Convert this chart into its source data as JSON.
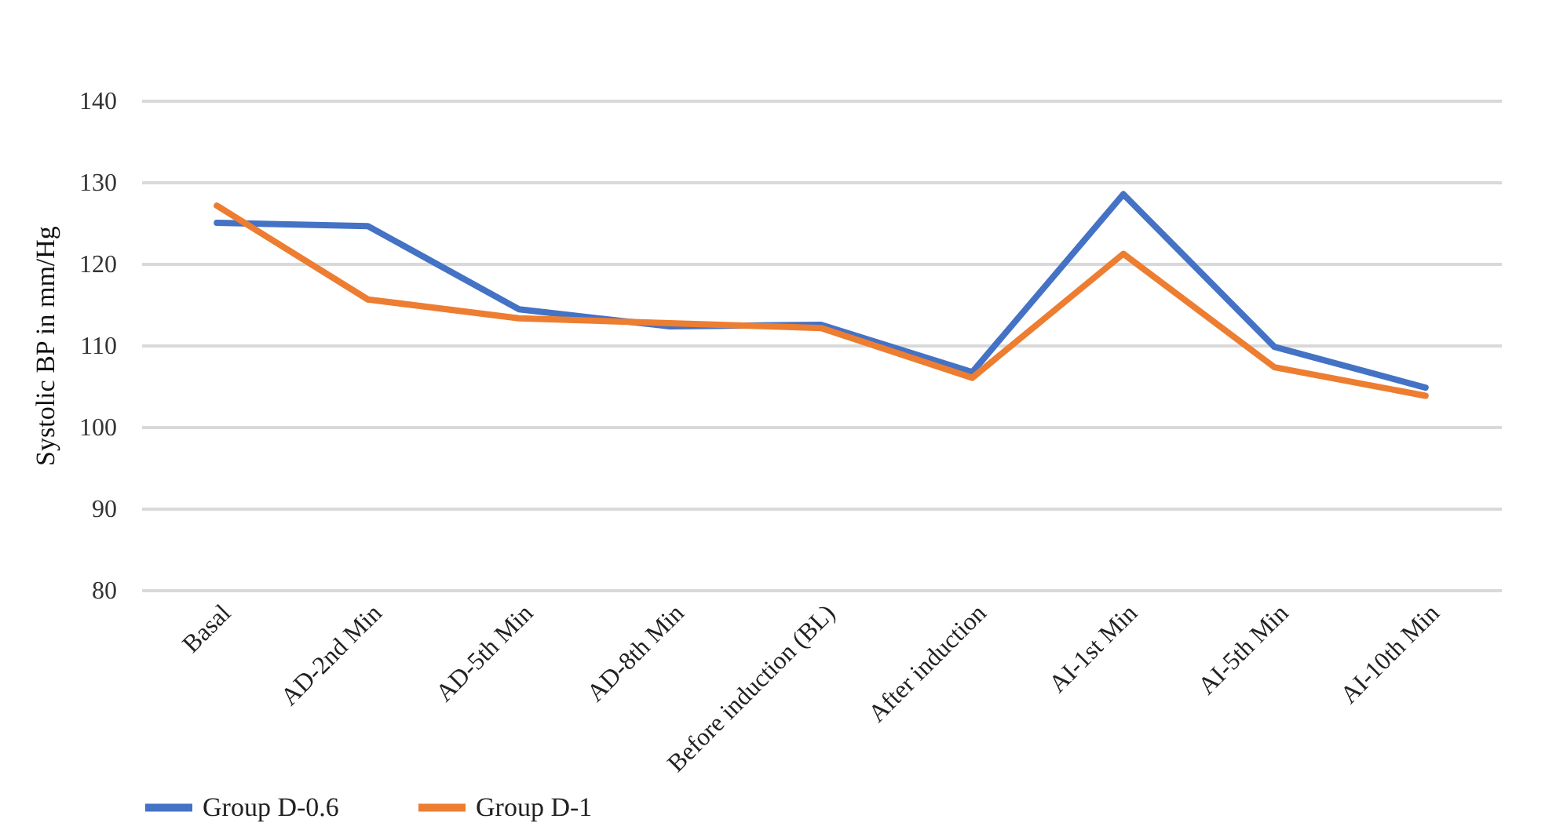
{
  "chart_data": {
    "type": "line",
    "ylabel": "Systolic BP in mm/Hg",
    "categories": [
      "Basal",
      "AD-2nd Min",
      "AD-5th Min",
      "AD-8th Min",
      "Before induction (BL)",
      "After induction",
      "AI-1st Min",
      "AI-5th Min",
      "AI-10th Min"
    ],
    "series": [
      {
        "name": "Group D-0.6",
        "color": "#4472c4",
        "values": [
          125,
          124.6,
          114.4,
          112.3,
          112.5,
          106.7,
          128.5,
          109.8,
          104.8
        ]
      },
      {
        "name": "Group D-1",
        "color": "#ed7d31",
        "values": [
          127.1,
          115.6,
          113.3,
          112.7,
          112.1,
          106,
          121.2,
          107.3,
          103.8
        ]
      }
    ],
    "ylim": [
      80,
      140
    ],
    "yticks": [
      80,
      90,
      100,
      110,
      120,
      130,
      140
    ],
    "grid": "y",
    "legend": "bottom",
    "marker": "none",
    "line_style": "solid"
  }
}
